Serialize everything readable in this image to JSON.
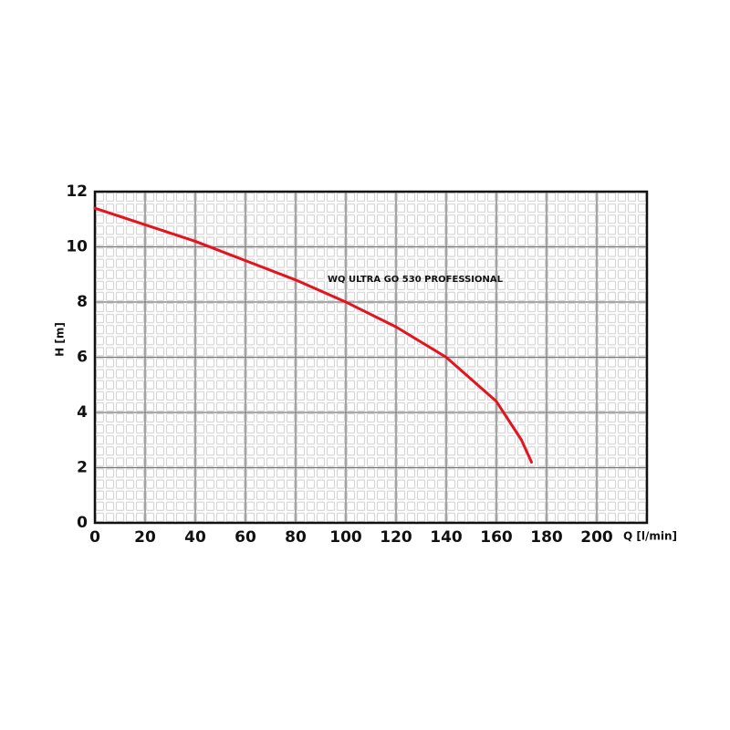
{
  "chart_data": {
    "type": "line",
    "annotation": "WQ ULTRA GO 530 PROFESSIONAL",
    "x_label": "Q [l/min]",
    "y_label": "H [m]",
    "x": [
      0,
      20,
      40,
      60,
      80,
      100,
      120,
      140,
      160,
      170,
      174
    ],
    "series": [
      {
        "color": "#e3141e",
        "values": [
          11.4,
          10.8,
          10.2,
          9.5,
          8.8,
          8.0,
          7.1,
          6.0,
          4.4,
          3.0,
          2.2
        ]
      }
    ],
    "xlim": [
      0,
      220
    ],
    "xticks": [
      0,
      20,
      40,
      60,
      80,
      100,
      120,
      140,
      160,
      180,
      200
    ],
    "ylim": [
      0,
      12
    ],
    "yticks": [
      0,
      2,
      4,
      6,
      8,
      10,
      12
    ],
    "grid": true
  }
}
